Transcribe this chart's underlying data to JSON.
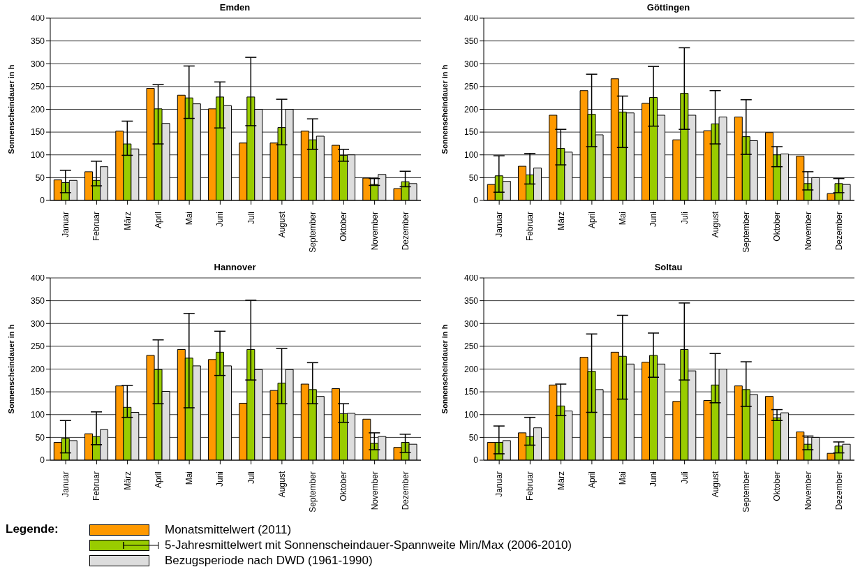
{
  "chart_data": [
    {
      "type": "bar",
      "title": "Emden",
      "ylabel": "Sonnenscheindauer in h",
      "categories": [
        "Januar",
        "Februar",
        "März",
        "April",
        "Mai",
        "Juni",
        "Juli",
        "August",
        "September",
        "Oktober",
        "November",
        "Dezember"
      ],
      "ylim": [
        0,
        400
      ],
      "yticks": [
        0,
        50,
        100,
        150,
        200,
        250,
        300,
        350,
        400
      ],
      "grid": "y",
      "legend": "bottom",
      "legend_title": "Legende:",
      "series": [
        {
          "name": "Monatsmittelwert (2011)",
          "color": "#ff9900",
          "values": [
            45,
            63,
            152,
            246,
            231,
            201,
            126,
            126,
            152,
            121,
            49,
            26
          ]
        },
        {
          "name": "5-Jahresmittelwert mit Sonnenscheindauer-Spannweite Min/Max (2006-2010)",
          "color": "#99cc00",
          "values": [
            39,
            44,
            124,
            201,
            225,
            227,
            227,
            160,
            133,
            99,
            35,
            41
          ],
          "errors": [
            [
              17,
              66
            ],
            [
              32,
              86
            ],
            [
              99,
              174
            ],
            [
              124,
              254
            ],
            [
              180,
              295
            ],
            [
              159,
              260
            ],
            [
              164,
              314
            ],
            [
              122,
              222
            ],
            [
              112,
              179
            ],
            [
              86,
              112
            ],
            [
              33,
              48
            ],
            [
              30,
              64
            ]
          ]
        },
        {
          "name": "Bezugsperiode nach DWD (1961-1990)",
          "color": "#dddddd",
          "values": [
            44,
            74,
            113,
            169,
            212,
            208,
            200,
            200,
            141,
            100,
            57,
            37
          ]
        }
      ]
    },
    {
      "type": "bar",
      "title": "Göttingen",
      "ylabel": "Sonnenscheindauer in h",
      "categories": [
        "Januar",
        "Februar",
        "März",
        "April",
        "Mai",
        "Juni",
        "Juli",
        "August",
        "September",
        "Oktober",
        "November",
        "Dezember"
      ],
      "ylim": [
        0,
        400
      ],
      "yticks": [
        0,
        50,
        100,
        150,
        200,
        250,
        300,
        350,
        400
      ],
      "grid": "y",
      "series": [
        {
          "color": "#ff9900",
          "values": [
            35,
            75,
            187,
            241,
            267,
            213,
            133,
            153,
            183,
            149,
            97,
            15
          ]
        },
        {
          "color": "#99cc00",
          "values": [
            54,
            56,
            114,
            189,
            194,
            226,
            235,
            168,
            140,
            100,
            37,
            37
          ],
          "errors": [
            [
              18,
              98
            ],
            [
              36,
              103
            ],
            [
              78,
              156
            ],
            [
              118,
              277
            ],
            [
              116,
              229
            ],
            [
              163,
              294
            ],
            [
              156,
              335
            ],
            [
              124,
              241
            ],
            [
              101,
              221
            ],
            [
              74,
              118
            ],
            [
              23,
              63
            ],
            [
              17,
              48
            ]
          ]
        },
        {
          "color": "#dddddd",
          "values": [
            42,
            71,
            106,
            144,
            192,
            187,
            187,
            183,
            131,
            102,
            50,
            35
          ]
        }
      ]
    },
    {
      "type": "bar",
      "title": "Hannover",
      "ylabel": "Sonnenscheindauer in h",
      "categories": [
        "Januar",
        "Februar",
        "März",
        "April",
        "Mai",
        "Juni",
        "Juli",
        "August",
        "September",
        "Oktober",
        "November",
        "Dezember"
      ],
      "ylim": [
        0,
        400
      ],
      "yticks": [
        0,
        50,
        100,
        150,
        200,
        250,
        300,
        350,
        400
      ],
      "grid": "y",
      "series": [
        {
          "color": "#ff9900",
          "values": [
            39,
            58,
            163,
            230,
            243,
            221,
            125,
            153,
            167,
            157,
            90,
            28
          ]
        },
        {
          "color": "#99cc00",
          "values": [
            48,
            52,
            116,
            199,
            224,
            237,
            243,
            169,
            155,
            102,
            37,
            39
          ],
          "errors": [
            [
              16,
              87
            ],
            [
              34,
              106
            ],
            [
              94,
              164
            ],
            [
              124,
              264
            ],
            [
              115,
              322
            ],
            [
              186,
              283
            ],
            [
              176,
              351
            ],
            [
              124,
              245
            ],
            [
              124,
              214
            ],
            [
              83,
              124
            ],
            [
              23,
              60
            ],
            [
              17,
              57
            ]
          ]
        },
        {
          "color": "#dddddd",
          "values": [
            43,
            67,
            105,
            151,
            207,
            207,
            199,
            199,
            140,
            103,
            52,
            35
          ]
        }
      ]
    },
    {
      "type": "bar",
      "title": "Soltau",
      "ylabel": "Sonnenscheindauer in h",
      "categories": [
        "Januar",
        "Februar",
        "März",
        "April",
        "Mai",
        "Juni",
        "Juli",
        "August",
        "September",
        "Oktober",
        "November",
        "Dezember"
      ],
      "ylim": [
        0,
        400
      ],
      "yticks": [
        0,
        50,
        100,
        150,
        200,
        250,
        300,
        350,
        400
      ],
      "grid": "y",
      "series": [
        {
          "color": "#ff9900",
          "values": [
            39,
            60,
            165,
            226,
            237,
            215,
            129,
            131,
            163,
            140,
            62,
            15
          ]
        },
        {
          "color": "#99cc00",
          "values": [
            39,
            52,
            119,
            195,
            228,
            230,
            243,
            165,
            155,
            93,
            35,
            31
          ],
          "errors": [
            [
              14,
              75
            ],
            [
              33,
              94
            ],
            [
              98,
              167
            ],
            [
              105,
              277
            ],
            [
              134,
              318
            ],
            [
              182,
              279
            ],
            [
              176,
              345
            ],
            [
              126,
              234
            ],
            [
              118,
              216
            ],
            [
              87,
              111
            ],
            [
              23,
              53
            ],
            [
              16,
              40
            ]
          ]
        },
        {
          "color": "#dddddd",
          "values": [
            43,
            71,
            108,
            155,
            211,
            211,
            196,
            200,
            144,
            104,
            50,
            35
          ]
        }
      ]
    }
  ]
}
